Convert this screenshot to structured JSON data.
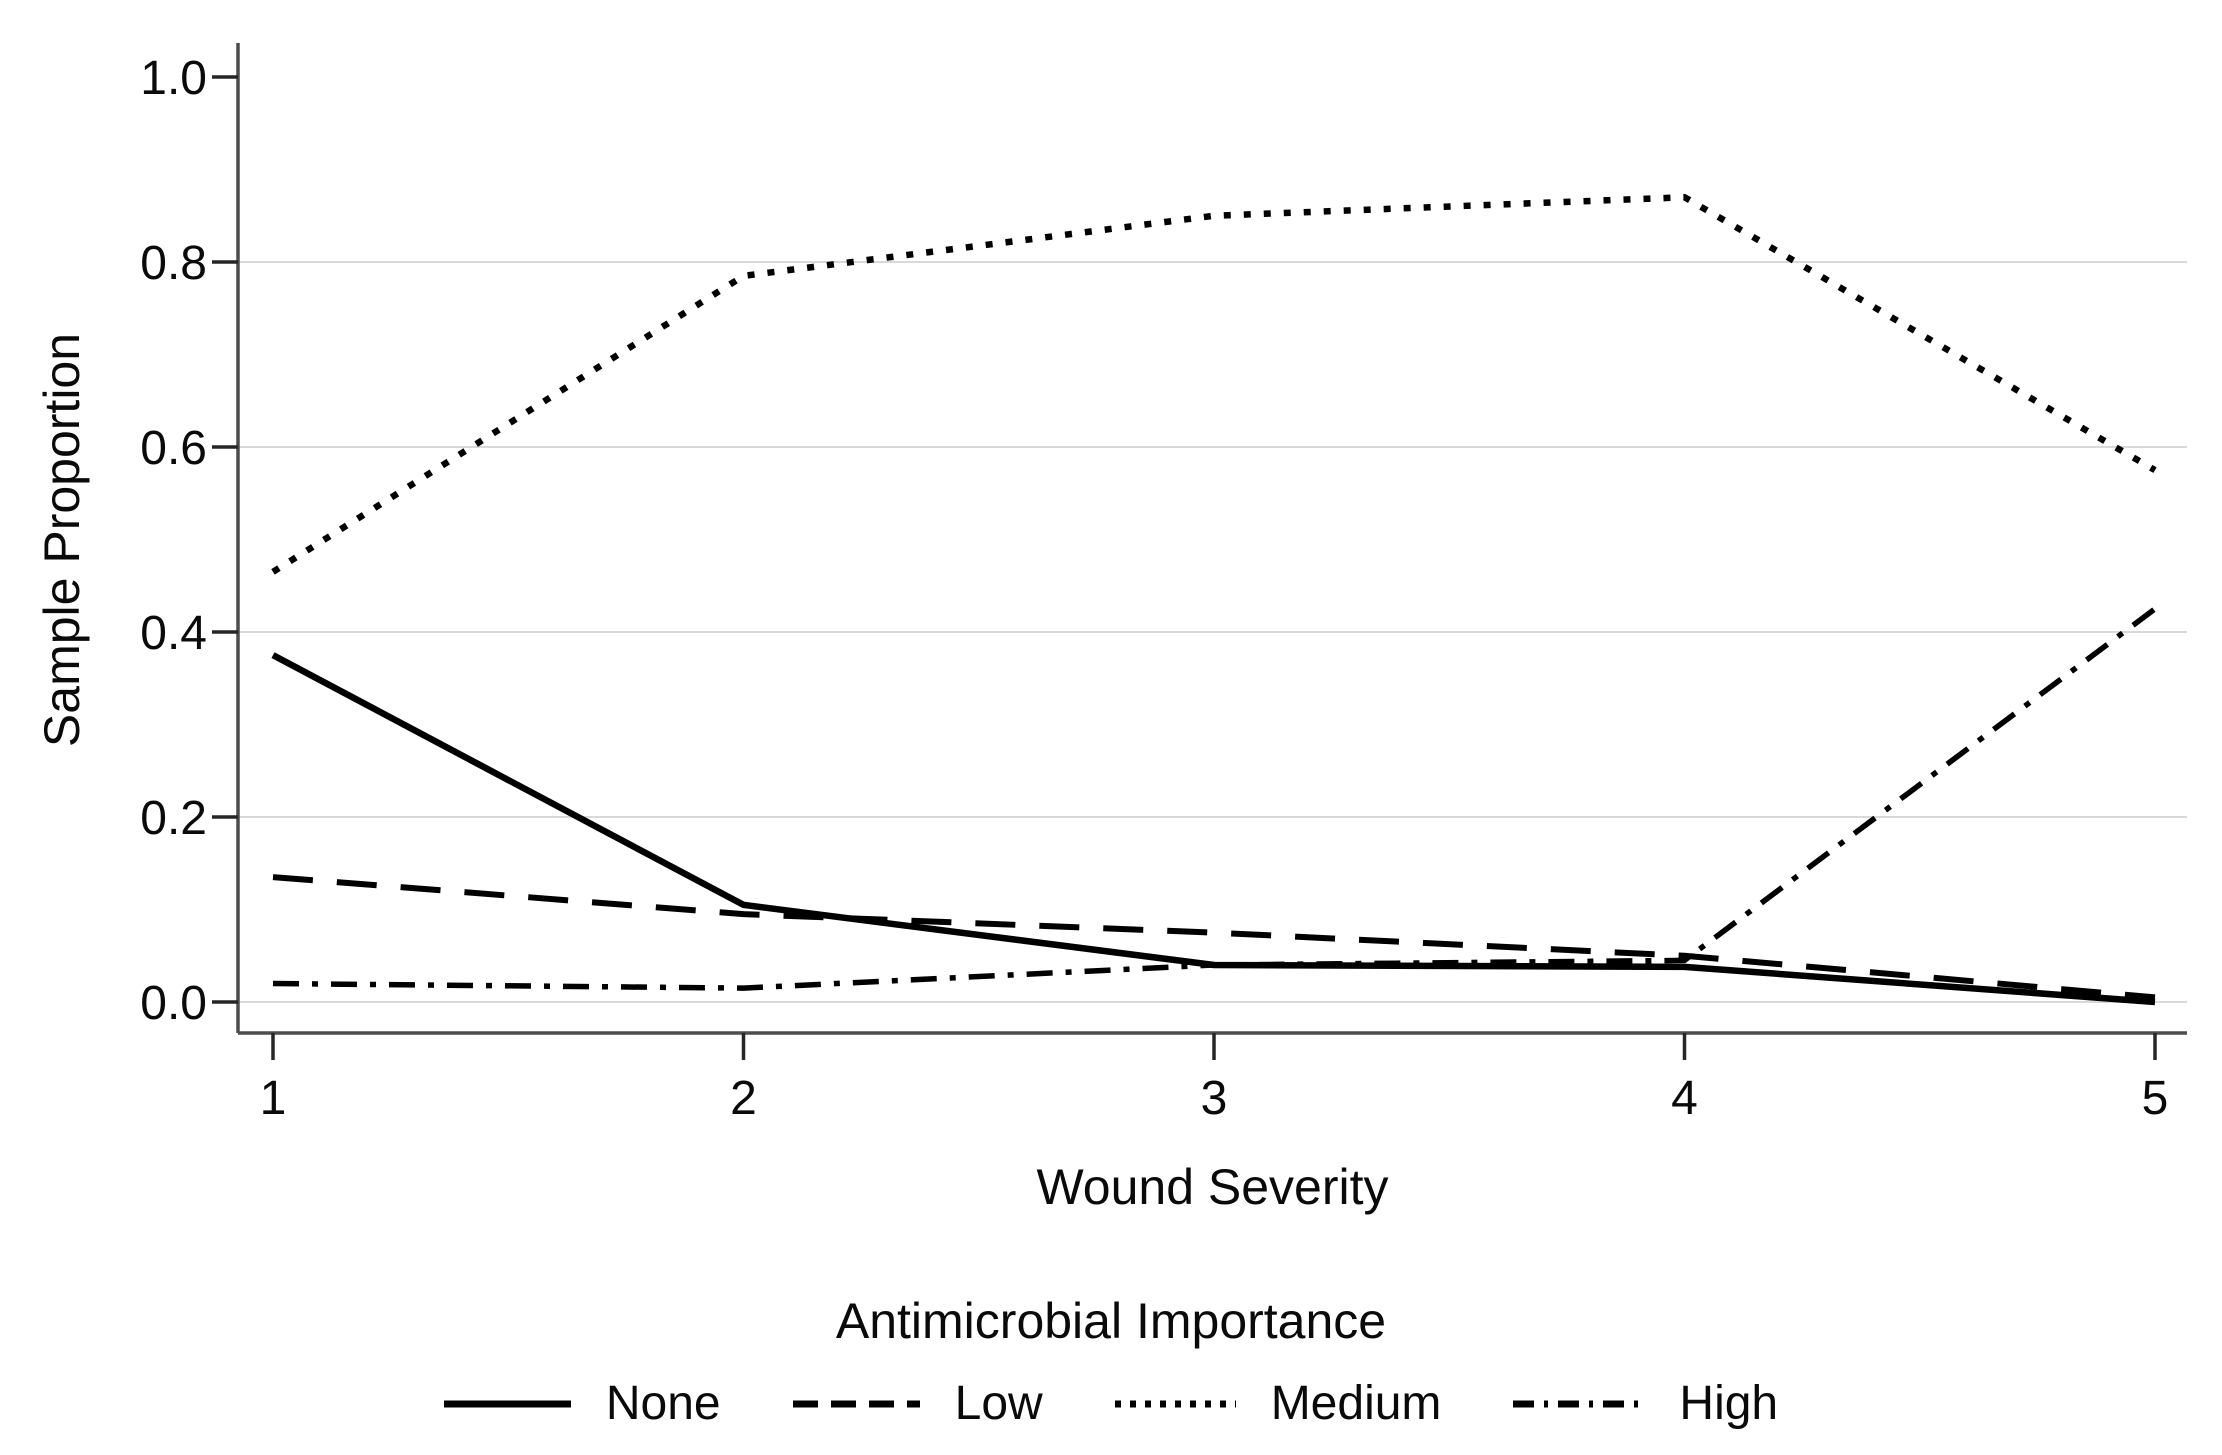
{
  "chart_data": {
    "type": "line",
    "title": "",
    "xlabel": "Wound Severity",
    "ylabel": "Sample Proportion",
    "legend_title": "Antimicrobial Importance",
    "legend_position": "bottom",
    "grid": true,
    "xlim": [
      1,
      5
    ],
    "ylim": [
      0.0,
      1.0
    ],
    "x": [
      1,
      2,
      3,
      4,
      5
    ],
    "xtick_labels": [
      "1",
      "2",
      "3",
      "4",
      "5"
    ],
    "xtick_values": [
      1,
      2,
      3,
      4,
      5
    ],
    "ytick_labels": [
      "0.0",
      "0.2",
      "0.4",
      "0.6",
      "0.8",
      "1.0"
    ],
    "ytick_values": [
      0.0,
      0.2,
      0.4,
      0.6,
      0.8,
      1.0
    ],
    "grid_levels": [
      0.0,
      0.2,
      0.4,
      0.6,
      0.8
    ],
    "series": [
      {
        "name": "None",
        "style": "solid",
        "values": [
          0.375,
          0.105,
          0.04,
          0.038,
          0.0
        ]
      },
      {
        "name": "Low",
        "style": "dashed",
        "values": [
          0.135,
          0.095,
          0.075,
          0.05,
          0.005
        ]
      },
      {
        "name": "Medium",
        "style": "dotted",
        "values": [
          0.465,
          0.785,
          0.85,
          0.87,
          0.575
        ]
      },
      {
        "name": "High",
        "style": "dashdot",
        "values": [
          0.02,
          0.015,
          0.04,
          0.045,
          0.425
        ]
      }
    ],
    "colors": {
      "line": "#000000",
      "grid": "#d9d9d9",
      "axis": "#4d4d4d",
      "tick": "#262626",
      "text": "#0a0a0a",
      "background": "#ffffff"
    }
  }
}
